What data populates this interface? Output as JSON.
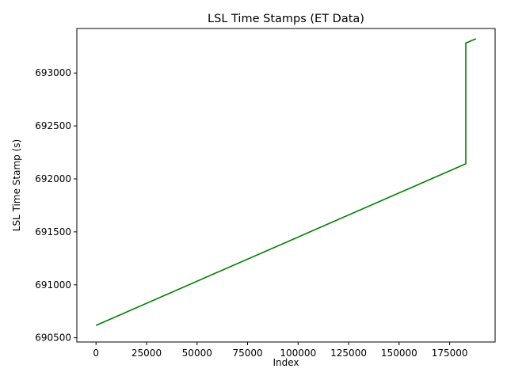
{
  "chart_data": {
    "type": "line",
    "title": "LSL Time Stamps (ET Data)",
    "xlabel": "Index",
    "ylabel": "LSL Time Stamp (s)",
    "xlim": [
      -9500,
      197500
    ],
    "ylim": [
      690460,
      693420
    ],
    "xticks": [
      0,
      25000,
      50000,
      75000,
      100000,
      125000,
      150000,
      175000
    ],
    "xtick_labels": [
      "0",
      "25000",
      "50000",
      "75000",
      "100000",
      "125000",
      "150000",
      "175000"
    ],
    "yticks": [
      690500,
      691000,
      691500,
      692000,
      692500,
      693000
    ],
    "ytick_labels": [
      "690500",
      "691000",
      "691500",
      "692000",
      "692500",
      "693000"
    ],
    "grid": false,
    "series": [
      {
        "color": "#008000",
        "x": [
          0,
          183000,
          183000,
          188000
        ],
        "y": [
          690617,
          692143,
          693283,
          693323
        ]
      }
    ]
  }
}
